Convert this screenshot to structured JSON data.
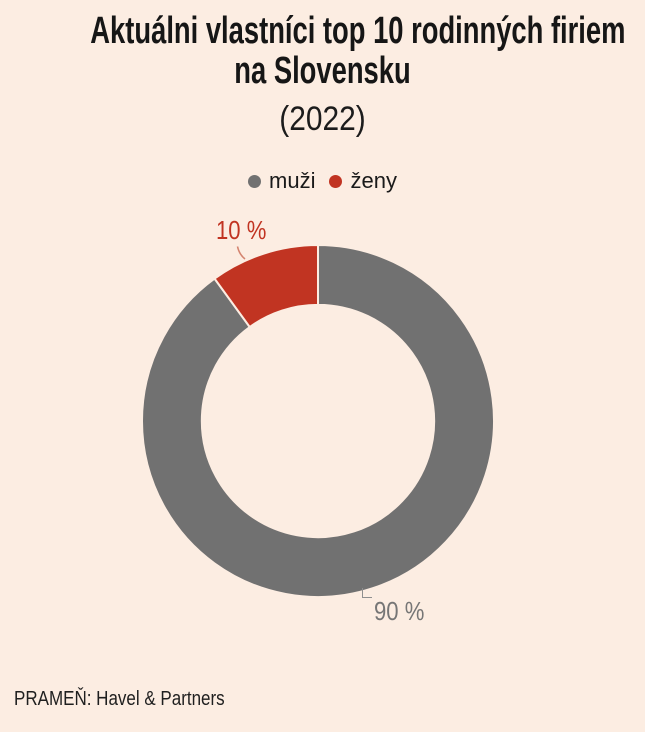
{
  "page": {
    "background_color": "#fcede2"
  },
  "header": {
    "title": "Aktuálni vlastníci top 10 rodinných firiem na Slovensku",
    "title_lines": [
      "Aktuálni vlastníci top 10 rodinných firiem",
      "na Slovensku"
    ],
    "subtitle": "(2022)"
  },
  "chart_data": {
    "type": "pie",
    "subtype": "donut",
    "title": "Aktuálni vlastníci top 10 rodinných firiem na Slovensku",
    "subtitle": "(2022)",
    "unit": "%",
    "start_angle_deg": 0,
    "direction": "clockwise",
    "inner_radius_ratio": 0.66,
    "background": "#fcede2",
    "legend_position": "top",
    "series": [
      {
        "key": "muzi",
        "name": "muži",
        "value": 90,
        "label": "90 %",
        "color": "#717171"
      },
      {
        "key": "zeny",
        "name": "ženy",
        "value": 10,
        "label": "10 %",
        "color": "#c13422"
      }
    ]
  },
  "footer": {
    "source": "PRAMEŇ: Havel & Partners"
  }
}
